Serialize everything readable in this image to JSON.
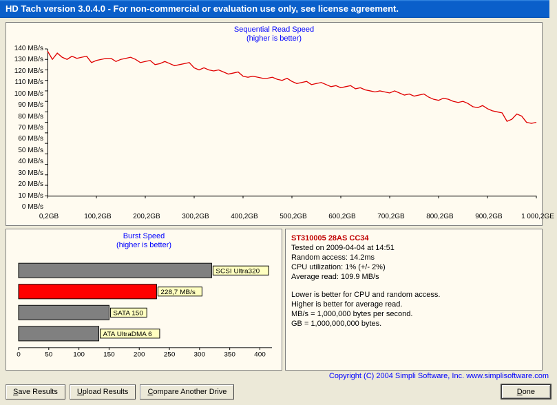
{
  "title": "HD Tach version 3.0.4.0  - For non-commercial or evaluation use only, see license agreement.",
  "seq": {
    "title": "Sequential Read Speed",
    "subtitle": "(higher is better)",
    "y_label_suffix": " MB/s",
    "y_max": 140,
    "y_step": 10,
    "x_ticks": [
      "0,2GB",
      "100,2GB",
      "200,2GB",
      "300,2GB",
      "400,2GB",
      "500,2GB",
      "600,2GB",
      "700,2GB",
      "800,2GB",
      "900,2GB",
      "1 000,2GE"
    ],
    "series_color": "#e00000",
    "background": "#fffbf0",
    "data": [
      138,
      130,
      136,
      132,
      130,
      133,
      131,
      132,
      133,
      127,
      129,
      130,
      131,
      131,
      128,
      130,
      131,
      132,
      130,
      127,
      128,
      129,
      125,
      126,
      128,
      126,
      124,
      125,
      126,
      127,
      122,
      120,
      122,
      120,
      119,
      120,
      118,
      116,
      117,
      118,
      114,
      113,
      114,
      113,
      112,
      112,
      113,
      111,
      110,
      112,
      109,
      107,
      108,
      109,
      106,
      107,
      108,
      106,
      104,
      105,
      103,
      104,
      105,
      102,
      103,
      101,
      100,
      99,
      100,
      99,
      98,
      100,
      98,
      96,
      97,
      95,
      96,
      97,
      94,
      92,
      91,
      93,
      92,
      90,
      89,
      90,
      88,
      85,
      84,
      86,
      83,
      81,
      80,
      79,
      71,
      73,
      78,
      76,
      70,
      69,
      70
    ]
  },
  "burst": {
    "title": "Burst Speed",
    "subtitle": "(higher is better)",
    "x_max": 420,
    "x_step": 50,
    "background": "#fffbf0",
    "bars": [
      {
        "value": 320,
        "label": "SCSI Ultra320",
        "color": "#808080"
      },
      {
        "value": 228.7,
        "label": "228,7 MB/s",
        "color": "#ff0000"
      },
      {
        "value": 150,
        "label": "SATA 150",
        "color": "#808080"
      },
      {
        "value": 133,
        "label": "ATA UltraDMA 6",
        "color": "#808080"
      }
    ]
  },
  "info": {
    "drive": "ST310005 28AS CC34",
    "tested": "Tested on 2009-04-04 at 14:51",
    "random": "Random access: 14.2ms",
    "cpu": "CPU utilization: 1% (+/- 2%)",
    "avg": "Average read: 109.9 MB/s",
    "note1": "Lower is better for CPU and random access.",
    "note2": "Higher is better for average read.",
    "note3": "MB/s = 1,000,000 bytes per second.",
    "note4": "GB = 1,000,000,000 bytes."
  },
  "buttons": {
    "save": "Save Results",
    "upload": "Upload Results",
    "compare": "Compare Another Drive",
    "done": "Done"
  },
  "copyright": "Copyright (C) 2004 Simpli Software, Inc. www.simplisoftware.com"
}
